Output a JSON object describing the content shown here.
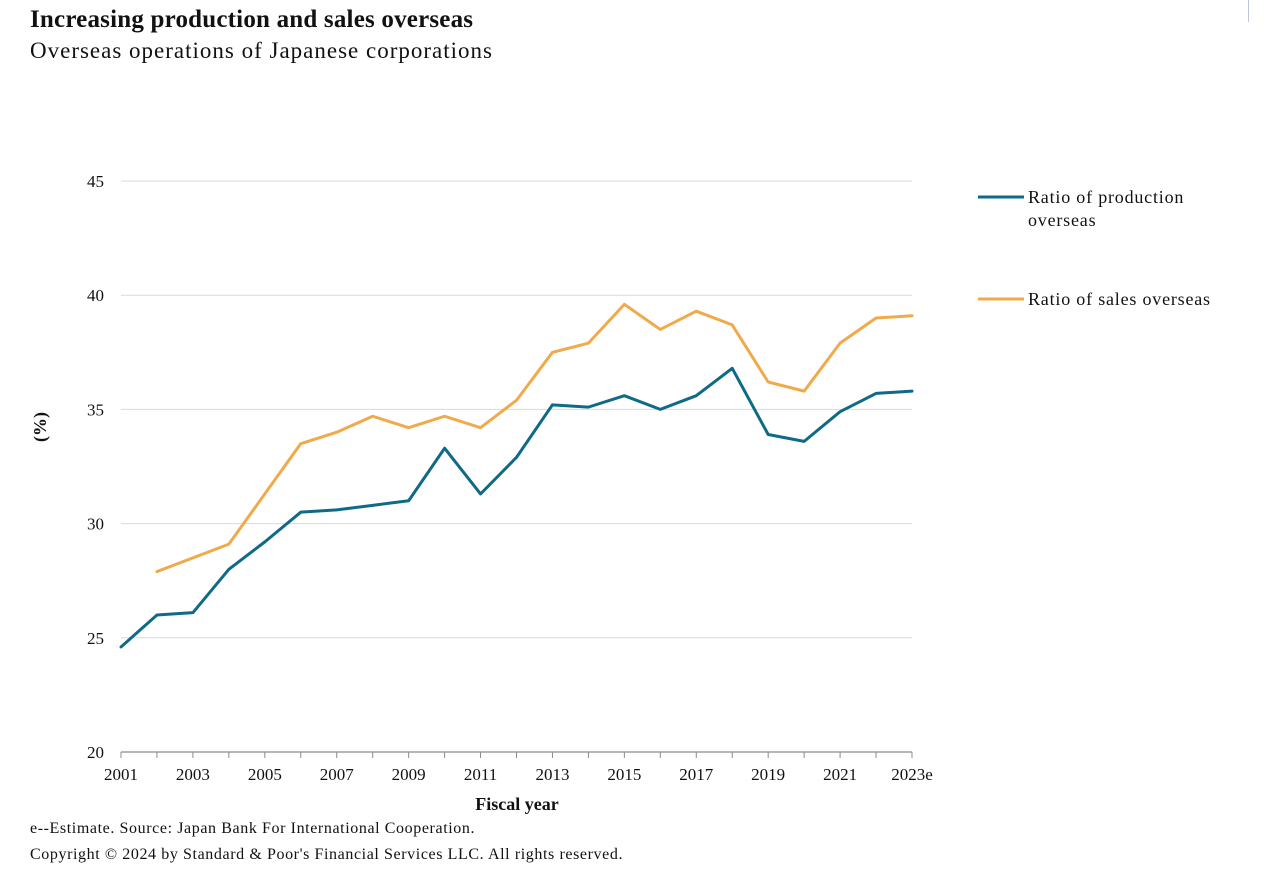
{
  "title": "Increasing production and sales overseas",
  "subtitle": "Overseas operations of Japanese corporations",
  "footnote": "e--Estimate. Source: Japan Bank For International Cooperation.",
  "copyright": "Copyright © 2024 by Standard & Poor's Financial Services LLC. All rights reserved.",
  "colors": {
    "production": "#0e6a86",
    "sales": "#f0aa4a",
    "grid": "#d9d9d9",
    "axis": "#8c8c8c"
  },
  "chart_data": {
    "type": "line",
    "xlabel": "Fiscal year",
    "ylabel": "(%)",
    "ylim": [
      20,
      45
    ],
    "yticks": [
      "20",
      "25",
      "30",
      "35",
      "40",
      "45"
    ],
    "x": [
      "2001",
      "2002",
      "2003",
      "2004",
      "2005",
      "2006",
      "2007",
      "2008",
      "2009",
      "2010",
      "2011",
      "2012",
      "2013",
      "2014",
      "2015",
      "2016",
      "2017",
      "2018",
      "2019",
      "2020",
      "2021",
      "2022",
      "2023e"
    ],
    "xtick_labels": [
      "2001",
      "2003",
      "2005",
      "2007",
      "2009",
      "2011",
      "2013",
      "2015",
      "2017",
      "2019",
      "2021",
      "2023e"
    ],
    "grid": true,
    "legend_position": "right",
    "series": [
      {
        "name": "Ratio of production overseas",
        "legend_lines": [
          "Ratio of production",
          "overseas"
        ],
        "color": "#0e6a86",
        "values": [
          24.6,
          26.0,
          26.1,
          28.0,
          29.2,
          30.5,
          30.6,
          30.8,
          31.0,
          33.3,
          31.3,
          32.9,
          35.2,
          35.1,
          35.6,
          35.0,
          35.6,
          36.8,
          33.9,
          33.6,
          34.9,
          35.7,
          35.8
        ]
      },
      {
        "name": "Ratio of sales overseas",
        "legend_lines": [
          "Ratio of sales overseas"
        ],
        "color": "#f0aa4a",
        "values": [
          null,
          27.9,
          28.5,
          29.1,
          31.3,
          33.5,
          34.0,
          34.7,
          34.2,
          34.7,
          34.2,
          35.4,
          37.5,
          37.9,
          39.6,
          38.5,
          39.3,
          38.7,
          36.2,
          35.8,
          37.9,
          39.0,
          39.1
        ]
      }
    ]
  }
}
